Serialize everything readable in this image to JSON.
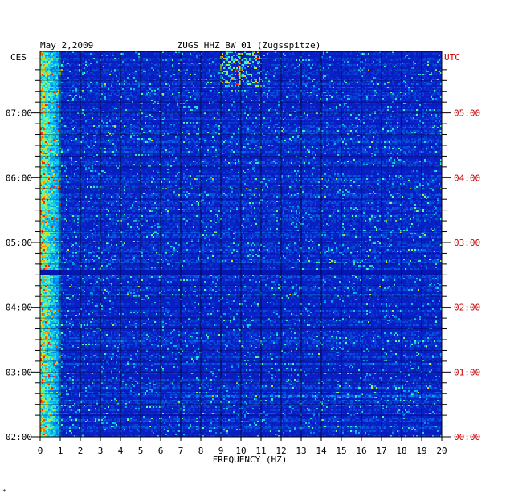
{
  "header": {
    "date": "May 2,2009",
    "station": "ZUGS HHZ BW 01 (Zugsspitze)",
    "left_zone": "CES",
    "right_zone": "UTC"
  },
  "footer_mark": "*",
  "chart_data": {
    "type": "heatmap",
    "title": "ZUGS HHZ BW 01 (Zugsspitze)",
    "subtitle": "May 2,2009",
    "xlabel": "FREQUENCY (HZ)",
    "xlim": [
      0,
      20
    ],
    "x_ticks": [
      "0",
      "1",
      "2",
      "3",
      "4",
      "5",
      "6",
      "7",
      "8",
      "9",
      "10",
      "11",
      "12",
      "13",
      "14",
      "15",
      "16",
      "17",
      "18",
      "19",
      "20"
    ],
    "y_left_label": "CES",
    "y_left_ticks": [
      {
        "hour": 2,
        "label": "02:00"
      },
      {
        "hour": 3,
        "label": "03:00"
      },
      {
        "hour": 4,
        "label": "04:00"
      },
      {
        "hour": 5,
        "label": "05:00"
      },
      {
        "hour": 6,
        "label": "06:00"
      },
      {
        "hour": 7,
        "label": "07:00"
      }
    ],
    "y_right_label": "UTC",
    "y_right_ticks": [
      {
        "hour": 2,
        "label": "00:00"
      },
      {
        "hour": 3,
        "label": "01:00"
      },
      {
        "hour": 4,
        "label": "02:00"
      },
      {
        "hour": 5,
        "label": "03:00"
      },
      {
        "hour": 6,
        "label": "04:00"
      },
      {
        "hour": 7,
        "label": "05:00"
      }
    ],
    "ylim_hours_ces": [
      2,
      7.95
    ],
    "minor_ticks_per_hour": 6,
    "colors": {
      "background": "#0a20c8",
      "low": "#0010a0",
      "mid": "#00b4ff",
      "high_mid": "#50ffb0",
      "high": "#ffd400",
      "peak": "#ff2000",
      "gap": "#000050",
      "left_axis_text": "#000000",
      "right_axis_text": "#cc0000"
    },
    "features": [
      {
        "name": "low-frequency energy band",
        "freq_range_hz": [
          0,
          1.0
        ],
        "intensity": "high"
      },
      {
        "name": "quiet gap",
        "hour_ces": 4.55,
        "intensity": "none"
      },
      {
        "name": "burst",
        "freq_range_hz": [
          9,
          11
        ],
        "hour_range_ces": [
          7.4,
          7.95
        ],
        "intensity": "high"
      },
      {
        "name": "horizontal band",
        "hour_ces": 2.62,
        "freq_range_hz": [
          7,
          20
        ],
        "intensity": "mid"
      }
    ]
  }
}
